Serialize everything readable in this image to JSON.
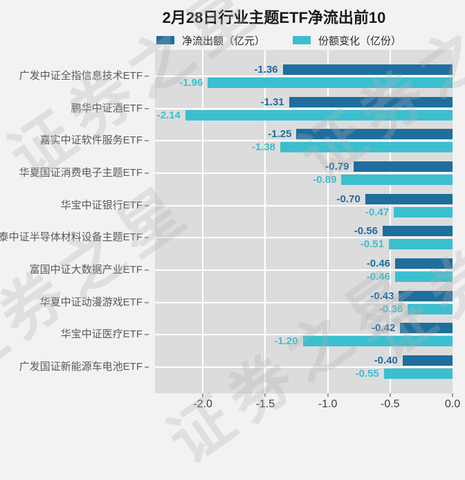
{
  "title": "2月28日行业主题ETF净流出前10",
  "watermark": "证券之星",
  "colors": {
    "net_outflow": "#1e6e9e",
    "share_change": "#3bbfcf",
    "plot_background": "#dcdcdc",
    "page_background": "#f2f2f2",
    "gridline": "#ffffff"
  },
  "chart_data": {
    "type": "bar",
    "orientation": "horizontal",
    "title": "2月28日行业主题ETF净流出前10",
    "categories": [
      "广发中证全指信息技术ETF",
      "鹏华中证酒ETF",
      "嘉实中证软件服务ETF",
      "华夏国证消费电子主题ETF",
      "华宝中证银行ETF",
      "国泰中证半导体材料设备主题ETF",
      "富国中证大数据产业ETF",
      "华夏中证动漫游戏ETF",
      "华宝中证医疗ETF",
      "广发国证新能源车电池ETF"
    ],
    "series": [
      {
        "name": "净流出额（亿元）",
        "color": "#1e6e9e",
        "values": [
          -1.36,
          -1.31,
          -1.25,
          -0.79,
          -0.7,
          -0.56,
          -0.46,
          -0.43,
          -0.42,
          -0.4
        ]
      },
      {
        "name": "份额变化（亿份）",
        "color": "#3bbfcf",
        "values": [
          -1.96,
          -2.14,
          -1.38,
          -0.89,
          -0.47,
          -0.51,
          -0.46,
          -0.36,
          -1.2,
          -0.55
        ]
      }
    ],
    "xlim": [
      -2.3833,
      0
    ],
    "x_ticks": [
      -2.0,
      -1.5,
      -1.0,
      -0.5,
      0.0
    ],
    "x_tick_labels": [
      "-2.0",
      "-1.5",
      "-1.0",
      "-0.5",
      "0.0"
    ],
    "legend_position": "top",
    "grid": true
  }
}
